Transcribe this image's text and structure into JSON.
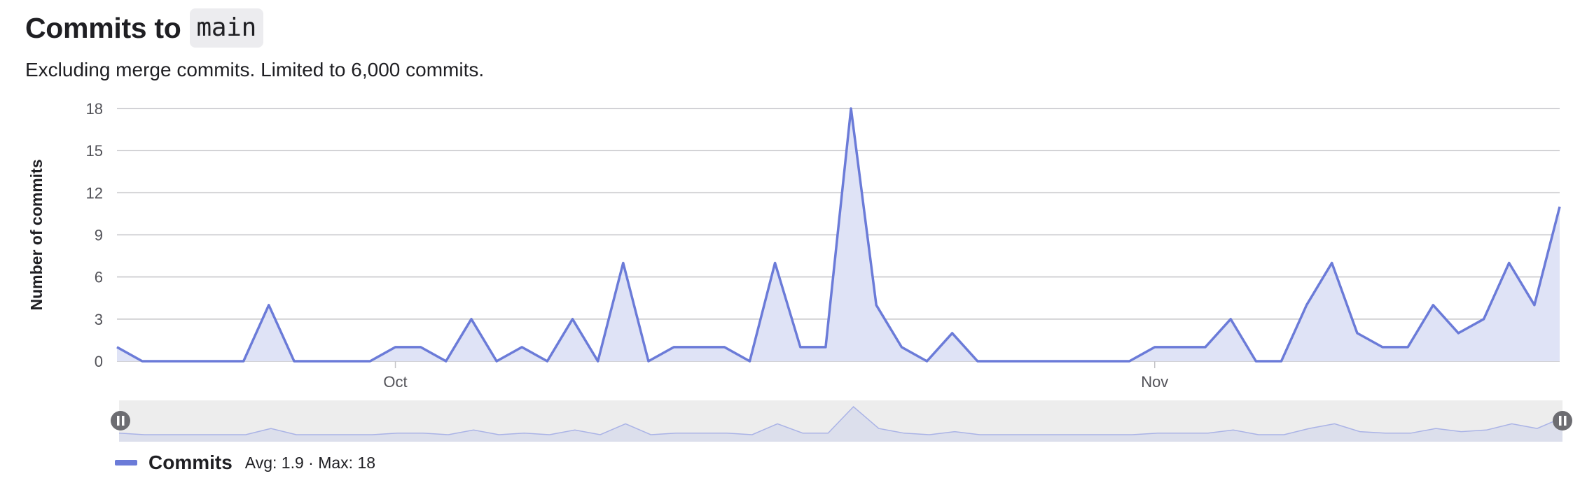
{
  "header": {
    "title": "Commits to",
    "branch": "main",
    "subtitle": "Excluding merge commits. Limited to 6,000 commits."
  },
  "legend": {
    "name": "Commits",
    "stats": "Avg: 1.9 · Max: 18"
  },
  "colors": {
    "line": "#6b7bd8",
    "area": "#dfe3f6",
    "grid": "#c4c4c8",
    "navigator_bg": "#ededed",
    "handle": "#6d6d72"
  },
  "icons": {
    "handle": "pause-icon"
  },
  "chart_data": {
    "type": "area",
    "title": "Commits to main",
    "ylabel": "Number of commits",
    "xlabel": "",
    "ylim": [
      0,
      18
    ],
    "yticks": [
      0,
      3,
      6,
      9,
      12,
      15,
      18
    ],
    "grid": true,
    "legend_position": "bottom-left",
    "x_tick_labels": [
      {
        "label": "Oct",
        "index": 11
      },
      {
        "label": "Nov",
        "index": 41
      }
    ],
    "series": [
      {
        "name": "Commits",
        "values": [
          1,
          0,
          0,
          0,
          0,
          0,
          4,
          0,
          0,
          0,
          0,
          1,
          1,
          0,
          3,
          0,
          1,
          0,
          3,
          0,
          7,
          0,
          1,
          1,
          1,
          0,
          7,
          1,
          1,
          18,
          4,
          1,
          0,
          2,
          0,
          0,
          0,
          0,
          0,
          0,
          0,
          1,
          1,
          1,
          3,
          0,
          0,
          4,
          7,
          2,
          1,
          1,
          4,
          2,
          3,
          7,
          4,
          11
        ]
      }
    ]
  }
}
